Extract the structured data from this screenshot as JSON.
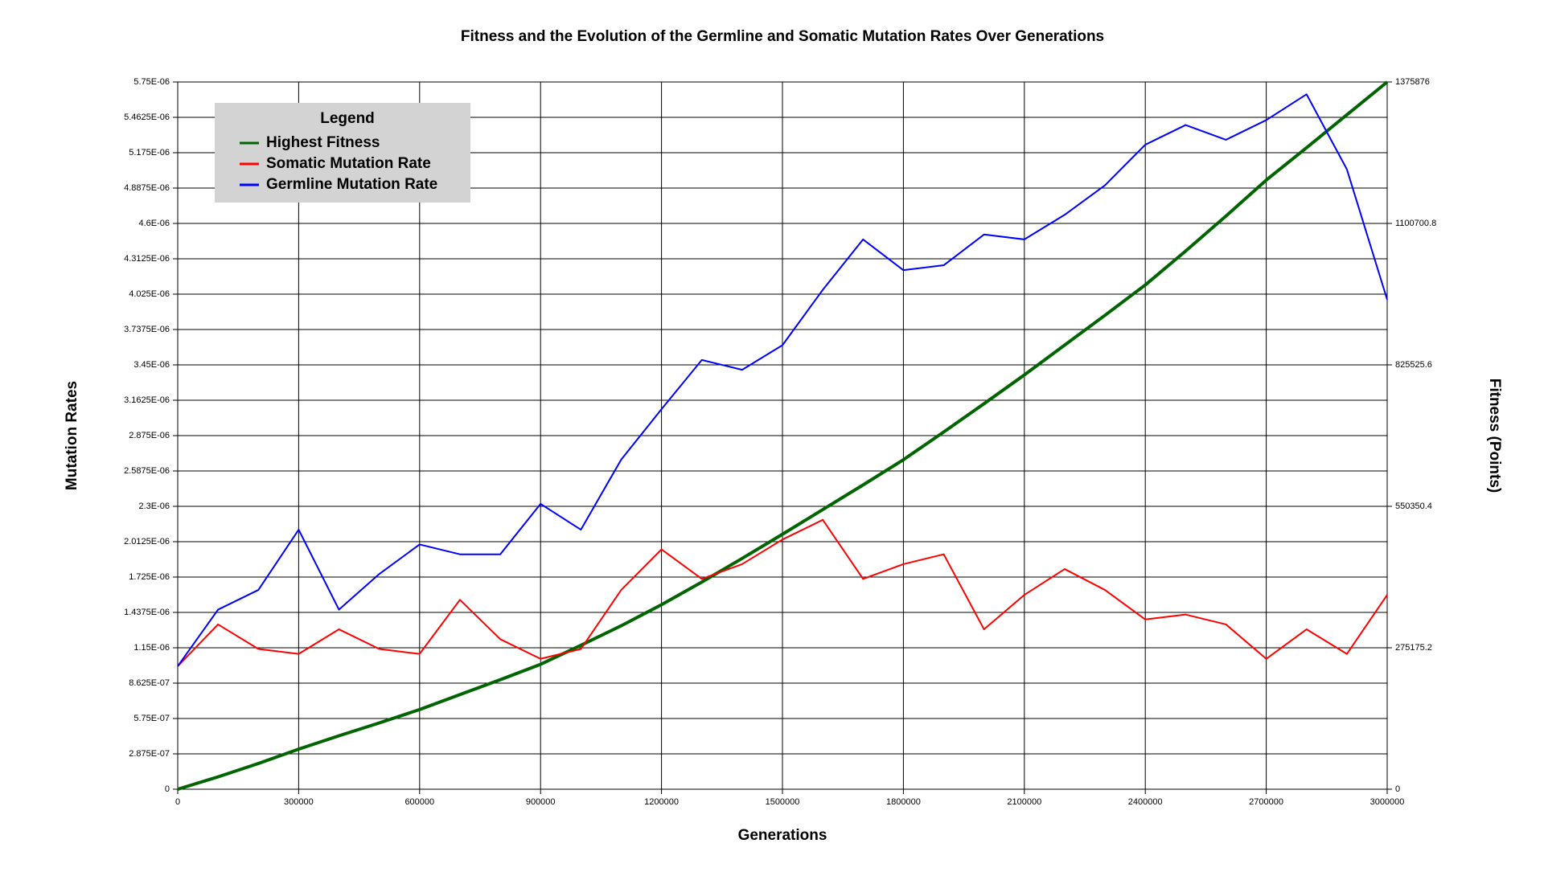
{
  "chart_data": {
    "type": "line",
    "title": "Fitness and the Evolution of the Germline and Somatic Mutation Rates Over Generations",
    "x_label": "Generations",
    "y_label": "Mutation Rates",
    "y2_label": "Fitness (Points)",
    "legend_title": "Legend",
    "legend_position": "upper left",
    "grid": true,
    "x": [
      0,
      100000,
      200000,
      300000,
      400000,
      500000,
      600000,
      700000,
      800000,
      900000,
      1000000,
      1100000,
      1200000,
      1300000,
      1400000,
      1500000,
      1600000,
      1700000,
      1800000,
      1900000,
      2000000,
      2100000,
      2200000,
      2300000,
      2400000,
      2500000,
      2600000,
      2700000,
      2800000,
      2900000,
      3000000
    ],
    "series": [
      {
        "name": "Highest Fitness",
        "color": "#006400",
        "axis": "y2",
        "values": [
          0,
          24000,
          50000,
          78000,
          104000,
          129000,
          155000,
          184000,
          213000,
          243000,
          280000,
          318000,
          359000,
          403000,
          449000,
          496000,
          544000,
          592000,
          641000,
          695000,
          750000,
          806000,
          864000,
          922000,
          981000,
          1047000,
          1115000,
          1185000,
          1248000,
          1312000,
          1375876
        ]
      },
      {
        "name": "Somatic Mutation Rate",
        "color": "#ff0000",
        "values": [
          1e-06,
          1.34e-06,
          1.14e-06,
          1.1e-06,
          1.3e-06,
          1.14e-06,
          1.1e-06,
          1.54e-06,
          1.22e-06,
          1.06e-06,
          1.14e-06,
          1.62e-06,
          1.95e-06,
          1.71e-06,
          1.83e-06,
          2.03e-06,
          2.19e-06,
          1.71e-06,
          1.83e-06,
          1.91e-06,
          1.3e-06,
          1.58e-06,
          1.79e-06,
          1.62e-06,
          1.38e-06,
          1.42e-06,
          1.34e-06,
          1.06e-06,
          1.3e-06,
          1.1e-06,
          1.58e-06
        ]
      },
      {
        "name": "Germline Mutation Rate",
        "color": "#0000ff",
        "values": [
          1e-06,
          1.46e-06,
          1.62e-06,
          2.11e-06,
          1.46e-06,
          1.75e-06,
          1.99e-06,
          1.91e-06,
          1.91e-06,
          2.32e-06,
          2.11e-06,
          2.68e-06,
          3.09e-06,
          3.49e-06,
          3.41e-06,
          3.61e-06,
          4.06e-06,
          4.47e-06,
          4.22e-06,
          4.26e-06,
          4.51e-06,
          4.47e-06,
          4.67e-06,
          4.91e-06,
          5.24e-06,
          5.4e-06,
          5.28e-06,
          5.44e-06,
          5.65e-06,
          5.04e-06,
          3.98e-06
        ]
      }
    ],
    "xlim": [
      0,
      3000000
    ],
    "xticks": [
      0,
      300000,
      600000,
      900000,
      1200000,
      1500000,
      1800000,
      2100000,
      2400000,
      2700000,
      3000000
    ],
    "ylim": [
      0,
      5.75e-06
    ],
    "yticks": [
      0,
      {
        "value": 2.875e-07,
        "label": "2.875E-07"
      },
      {
        "value": 5.75e-07,
        "label": "5.75E-07"
      },
      {
        "value": 8.625e-07,
        "label": "8.625E-07"
      },
      {
        "value": 1.15e-06,
        "label": "1.15E-06"
      },
      {
        "value": 1.4375e-06,
        "label": "1.4375E-06"
      },
      {
        "value": 1.725e-06,
        "label": "1.725E-06"
      },
      {
        "value": 2.0125e-06,
        "label": "2.0125E-06"
      },
      {
        "value": 2.3e-06,
        "label": "2.3E-06"
      },
      {
        "value": 2.5875e-06,
        "label": "2.5875E-06"
      },
      {
        "value": 2.875e-06,
        "label": "2.875E-06"
      },
      {
        "value": 3.1625e-06,
        "label": "3.1625E-06"
      },
      {
        "value": 3.45e-06,
        "label": "3.45E-06"
      },
      {
        "value": 3.7375e-06,
        "label": "3.7375E-06"
      },
      {
        "value": 4.025e-06,
        "label": "4.025E-06"
      },
      {
        "value": 4.3125e-06,
        "label": "4.3125E-06"
      },
      {
        "value": 4.6e-06,
        "label": "4.6E-06"
      },
      {
        "value": 4.8875e-06,
        "label": "4.8875E-06"
      },
      {
        "value": 5.175e-06,
        "label": "5.175E-06"
      },
      {
        "value": 5.4625e-06,
        "label": "5.4625E-06"
      },
      {
        "value": 5.75e-06,
        "label": "5.75E-06"
      }
    ],
    "y2lim": [
      0,
      1375876
    ],
    "y2ticks": [
      0,
      275175.2,
      550350.4,
      825525.6,
      1100700.8,
      1375876
    ]
  }
}
